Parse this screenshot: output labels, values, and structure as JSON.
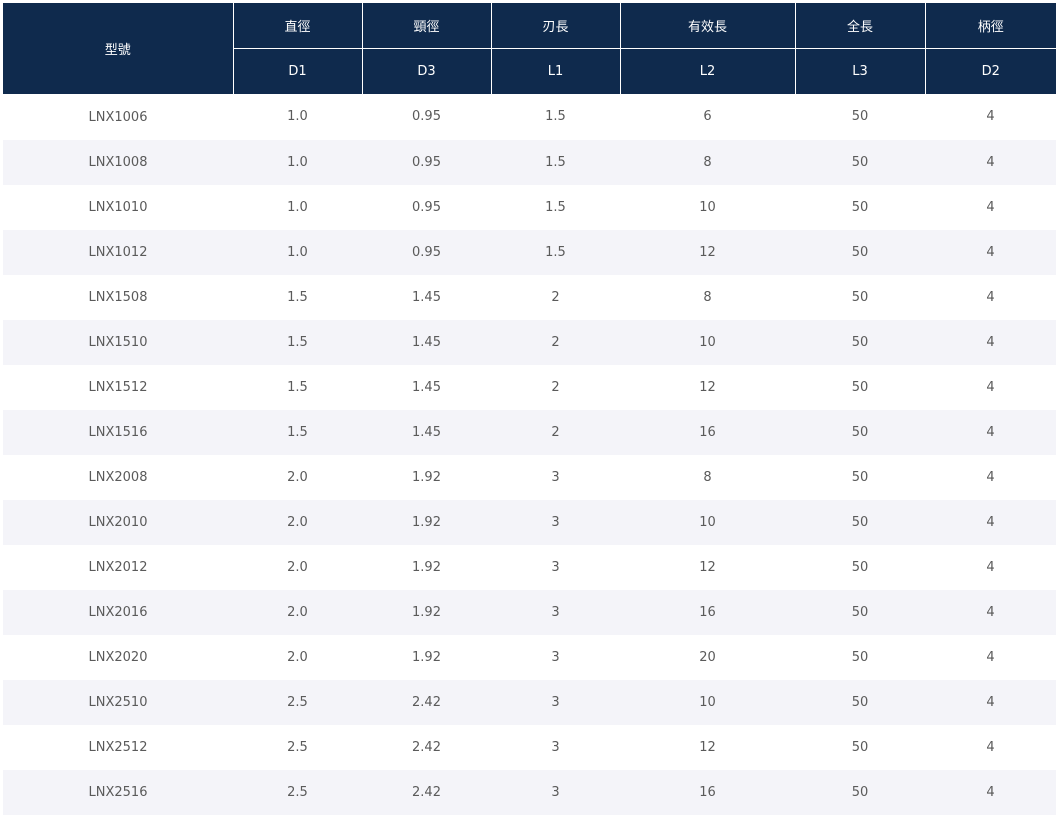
{
  "table": {
    "model_header": "型號",
    "columns": [
      {
        "name": "直徑",
        "code": "D1"
      },
      {
        "name": "頸徑",
        "code": "D3"
      },
      {
        "name": "刃長",
        "code": "L1"
      },
      {
        "name": "有效長",
        "code": "L2"
      },
      {
        "name": "全長",
        "code": "L3"
      },
      {
        "name": "柄徑",
        "code": "D2"
      }
    ],
    "rows": [
      [
        "LNX1006",
        "1.0",
        "0.95",
        "1.5",
        "6",
        "50",
        "4"
      ],
      [
        "LNX1008",
        "1.0",
        "0.95",
        "1.5",
        "8",
        "50",
        "4"
      ],
      [
        "LNX1010",
        "1.0",
        "0.95",
        "1.5",
        "10",
        "50",
        "4"
      ],
      [
        "LNX1012",
        "1.0",
        "0.95",
        "1.5",
        "12",
        "50",
        "4"
      ],
      [
        "LNX1508",
        "1.5",
        "1.45",
        "2",
        "8",
        "50",
        "4"
      ],
      [
        "LNX1510",
        "1.5",
        "1.45",
        "2",
        "10",
        "50",
        "4"
      ],
      [
        "LNX1512",
        "1.5",
        "1.45",
        "2",
        "12",
        "50",
        "4"
      ],
      [
        "LNX1516",
        "1.5",
        "1.45",
        "2",
        "16",
        "50",
        "4"
      ],
      [
        "LNX2008",
        "2.0",
        "1.92",
        "3",
        "8",
        "50",
        "4"
      ],
      [
        "LNX2010",
        "2.0",
        "1.92",
        "3",
        "10",
        "50",
        "4"
      ],
      [
        "LNX2012",
        "2.0",
        "1.92",
        "3",
        "12",
        "50",
        "4"
      ],
      [
        "LNX2016",
        "2.0",
        "1.92",
        "3",
        "16",
        "50",
        "4"
      ],
      [
        "LNX2020",
        "2.0",
        "1.92",
        "3",
        "20",
        "50",
        "4"
      ],
      [
        "LNX2510",
        "2.5",
        "2.42",
        "3",
        "10",
        "50",
        "4"
      ],
      [
        "LNX2512",
        "2.5",
        "2.42",
        "3",
        "12",
        "50",
        "4"
      ],
      [
        "LNX2516",
        "2.5",
        "2.42",
        "3",
        "16",
        "50",
        "4"
      ]
    ]
  }
}
